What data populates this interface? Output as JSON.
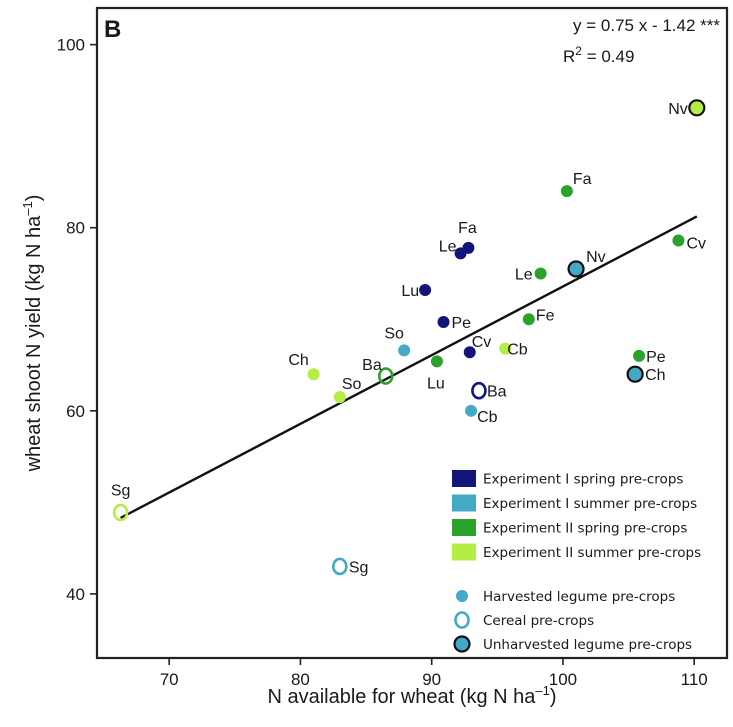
{
  "chart_data": {
    "type": "scatter",
    "panel_label": "B",
    "xlabel": "N available for wheat (kg N  ha",
    "xlabel_sup": "–1",
    "ylabel": "wheat shoot N yield (kg N  ha",
    "ylabel_sup": "–1",
    "xlim": [
      64.5,
      112.5
    ],
    "ylim": [
      33,
      104
    ],
    "xticks": [
      70,
      80,
      90,
      100,
      110
    ],
    "yticks": [
      40,
      60,
      80,
      100
    ],
    "grid": false,
    "equation": "y = 0.75 x - 1.42 ***",
    "r2_prefix": "R",
    "r2_sup": "2",
    "r2_value": " = 0.49",
    "regression": {
      "slope": 0.75,
      "intercept": -1.42,
      "x_start": 66.3,
      "x_end": 110.2
    },
    "colors": {
      "exp1_spring": "#14147a",
      "exp1_summer": "#44a9c6",
      "exp2_spring": "#2ba32b",
      "exp2_summer": "#b4ee44",
      "line": "#111111",
      "frame": "#222222"
    },
    "series": [
      {
        "name": "Experiment I  spring pre-crops",
        "color": "#14147a",
        "points": [
          {
            "label": "Fa",
            "x": 92.8,
            "y": 77.8,
            "type": "harvested"
          },
          {
            "label": "Le",
            "x": 92.2,
            "y": 77.2,
            "type": "harvested"
          },
          {
            "label": "Lu",
            "x": 89.5,
            "y": 73.2,
            "type": "harvested"
          },
          {
            "label": "Pe",
            "x": 90.9,
            "y": 69.7,
            "type": "harvested"
          },
          {
            "label": "Cv",
            "x": 92.9,
            "y": 66.4,
            "type": "harvested"
          },
          {
            "label": "Ba",
            "x": 93.6,
            "y": 62.2,
            "type": "cereal"
          }
        ]
      },
      {
        "name": "Experiment I  summer pre-crops",
        "color": "#44a9c6",
        "points": [
          {
            "label": "So",
            "x": 87.9,
            "y": 66.6,
            "type": "harvested"
          },
          {
            "label": "Cb",
            "x": 93.0,
            "y": 60.0,
            "type": "harvested"
          },
          {
            "label": "Nv",
            "x": 101.0,
            "y": 75.5,
            "type": "unharvested"
          },
          {
            "label": "Ch",
            "x": 105.5,
            "y": 64.0,
            "type": "unharvested"
          },
          {
            "label": "Sg",
            "x": 83.0,
            "y": 43.0,
            "type": "cereal"
          }
        ]
      },
      {
        "name": "Experiment II spring pre-crops",
        "color": "#2ba32b",
        "points": [
          {
            "label": "Fa",
            "x": 100.3,
            "y": 84.0,
            "type": "harvested"
          },
          {
            "label": "Cv",
            "x": 108.8,
            "y": 78.6,
            "type": "harvested"
          },
          {
            "label": "Le",
            "x": 98.3,
            "y": 75.0,
            "type": "harvested"
          },
          {
            "label": "Fe",
            "x": 97.4,
            "y": 70.0,
            "type": "harvested"
          },
          {
            "label": "Lu",
            "x": 90.4,
            "y": 65.4,
            "type": "harvested"
          },
          {
            "label": "Pe",
            "x": 105.8,
            "y": 66.0,
            "type": "harvested"
          },
          {
            "label": "Ba",
            "x": 86.5,
            "y": 63.8,
            "type": "cereal"
          }
        ]
      },
      {
        "name": "Experiment II summer pre-crops",
        "color": "#b4ee44",
        "points": [
          {
            "label": "Nv",
            "x": 110.2,
            "y": 93.1,
            "type": "unharvested"
          },
          {
            "label": "Cb",
            "x": 95.6,
            "y": 66.8,
            "type": "harvested"
          },
          {
            "label": "Ch",
            "x": 81.0,
            "y": 64.0,
            "type": "harvested"
          },
          {
            "label": "So",
            "x": 83.0,
            "y": 61.5,
            "type": "harvested"
          },
          {
            "label": "Sg",
            "x": 66.3,
            "y": 48.9,
            "type": "cereal"
          }
        ]
      }
    ],
    "legend_colors": [
      {
        "label": "Experiment I  spring pre-crops",
        "color": "#14147a"
      },
      {
        "label": "Experiment I  summer pre-crops",
        "color": "#44a9c6"
      },
      {
        "label": "Experiment II spring pre-crops",
        "color": "#2ba32b"
      },
      {
        "label": "Experiment II summer pre-crops",
        "color": "#b4ee44"
      }
    ],
    "legend_markers": [
      {
        "label": "Harvested legume pre-crops",
        "marker": "harvested"
      },
      {
        "label": "Cereal pre-crops",
        "marker": "cereal"
      },
      {
        "label": "Unharvested legume pre-crops",
        "marker": "unharvested"
      }
    ],
    "legend_marker_color": "#44a9c6",
    "legend_position": "bottom-right"
  }
}
